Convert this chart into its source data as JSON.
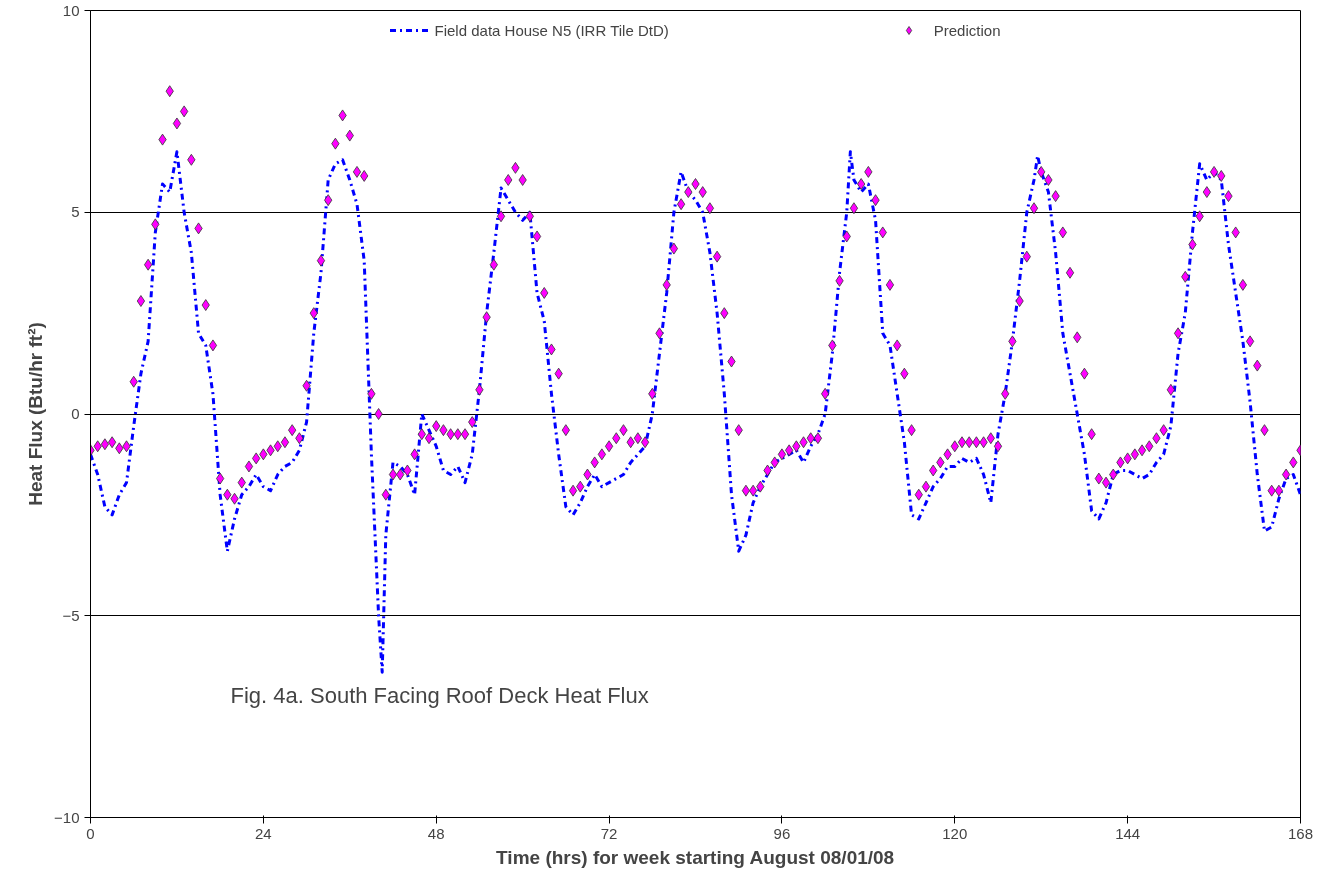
{
  "chart_data": {
    "type": "line",
    "xlabel": "Time (hrs) for week starting August 08/01/08",
    "ylabel": "Heat Flux (Btu/hr ft²)",
    "annotations": [
      "Fig. 4a. South Facing Roof Deck Heat Flux"
    ],
    "xlim": [
      0,
      168
    ],
    "xticks": [
      0,
      24,
      48,
      72,
      96,
      120,
      144,
      168
    ],
    "ylim": [
      -10,
      10
    ],
    "yticks": [
      -10,
      -5,
      0,
      5,
      10
    ],
    "grid": "y",
    "legend": "top",
    "series": [
      {
        "name": "Field data House N5 (IRR Tile DtD)",
        "color": "#0000ff",
        "line_style": "dashdot",
        "x": [
          0,
          1,
          2,
          3,
          4,
          5,
          6,
          7,
          8,
          9,
          10,
          11,
          12,
          13,
          14,
          15,
          16,
          17,
          18,
          19,
          20,
          21,
          22,
          23,
          24,
          25,
          26,
          27,
          28,
          29,
          30,
          31,
          32,
          33,
          34,
          35,
          36,
          37,
          38,
          39,
          40,
          40.5,
          41,
          42,
          43,
          44,
          45,
          46,
          47,
          48,
          49,
          50,
          51,
          52,
          53,
          54,
          55,
          56,
          57,
          58,
          59,
          60,
          61,
          62,
          63,
          64,
          65,
          66,
          67,
          68,
          69,
          70,
          71,
          72,
          73,
          74,
          75,
          76,
          77,
          78,
          79,
          80,
          81,
          82,
          83,
          84,
          85,
          86,
          87,
          88,
          89,
          90,
          91,
          92,
          93,
          94,
          95,
          96,
          97,
          98,
          99,
          100,
          101,
          102,
          103,
          104,
          105,
          105.5,
          106,
          107,
          108,
          109,
          110,
          111,
          112,
          113,
          114,
          115,
          116,
          117,
          118,
          119,
          120,
          121,
          122,
          123,
          124,
          125,
          126,
          127,
          128,
          129,
          130,
          131,
          131.5,
          132,
          133,
          134,
          135,
          136,
          137,
          138,
          139,
          140,
          141,
          142,
          143,
          144,
          145,
          146,
          147,
          148,
          149,
          150,
          151,
          152,
          153,
          154,
          155,
          156,
          157,
          158,
          159,
          160,
          161,
          162,
          163,
          164,
          165,
          166,
          167,
          168
        ],
        "values": [
          -1.0,
          -1.5,
          -2.3,
          -2.5,
          -2.0,
          -1.7,
          -0.3,
          1.0,
          1.8,
          4.5,
          5.7,
          5.5,
          6.5,
          5.0,
          4.0,
          2.0,
          1.7,
          0.5,
          -2.0,
          -3.4,
          -2.6,
          -2.0,
          -1.8,
          -1.5,
          -1.8,
          -1.9,
          -1.5,
          -1.3,
          -1.2,
          -0.9,
          -0.2,
          2.0,
          3.5,
          5.8,
          6.2,
          6.3,
          5.8,
          5.2,
          3.8,
          -1.0,
          -5.0,
          -6.4,
          -3.0,
          -1.2,
          -1.3,
          -1.5,
          -2.0,
          0.0,
          -0.4,
          -0.8,
          -1.4,
          -1.5,
          -1.3,
          -1.7,
          -1.0,
          0.6,
          2.5,
          4.0,
          5.6,
          5.3,
          5.0,
          4.8,
          5.0,
          3.0,
          2.3,
          0.5,
          -1.0,
          -2.3,
          -2.5,
          -2.2,
          -1.8,
          -1.5,
          -1.8,
          -1.7,
          -1.6,
          -1.5,
          -1.2,
          -1.0,
          -0.8,
          0.0,
          1.5,
          3.0,
          5.0,
          6.0,
          5.5,
          5.3,
          5.0,
          4.0,
          2.5,
          0.5,
          -2.0,
          -3.4,
          -3.0,
          -2.2,
          -1.8,
          -1.5,
          -1.2,
          -1.1,
          -1.0,
          -0.9,
          -1.2,
          -0.8,
          -0.5,
          0.0,
          1.5,
          3.5,
          5.0,
          6.5,
          5.8,
          5.5,
          5.7,
          4.8,
          2.0,
          1.7,
          0.5,
          -0.7,
          -2.5,
          -2.6,
          -2.2,
          -1.8,
          -1.6,
          -1.3,
          -1.3,
          -1.1,
          -1.2,
          -1.1,
          -1.5,
          -2.2,
          -0.5,
          0.5,
          1.8,
          3.3,
          5.0,
          5.8,
          6.4,
          6.0,
          5.5,
          4.0,
          2.0,
          1.0,
          0.0,
          -1.0,
          -2.4,
          -2.6,
          -2.2,
          -1.5,
          -1.4,
          -1.4,
          -1.5,
          -1.6,
          -1.5,
          -1.2,
          -1.0,
          -0.3,
          1.5,
          2.5,
          4.5,
          6.2,
          5.8,
          6.0,
          5.8,
          4.2,
          3.0,
          1.8,
          0.3,
          -1.5,
          -2.9,
          -2.8,
          -2.1,
          -1.6,
          -1.5,
          -2.0
        ]
      },
      {
        "name": "Prediction",
        "type": "scatter",
        "marker": "diamond",
        "color": "#ff00ff",
        "x": [
          0,
          1,
          2,
          3,
          4,
          5,
          6,
          7,
          8,
          9,
          10,
          11,
          12,
          13,
          14,
          15,
          16,
          17,
          18,
          19,
          20,
          21,
          22,
          23,
          24,
          25,
          26,
          27,
          28,
          29,
          30,
          31,
          32,
          33,
          34,
          35,
          36,
          37,
          38,
          39,
          40,
          41,
          42,
          43,
          44,
          45,
          46,
          47,
          48,
          49,
          50,
          51,
          52,
          53,
          54,
          55,
          56,
          57,
          58,
          59,
          60,
          61,
          62,
          63,
          64,
          65,
          66,
          67,
          68,
          69,
          70,
          71,
          72,
          73,
          74,
          75,
          76,
          77,
          78,
          79,
          80,
          81,
          82,
          83,
          84,
          85,
          86,
          87,
          88,
          89,
          90,
          91,
          92,
          93,
          94,
          95,
          96,
          97,
          98,
          99,
          100,
          101,
          102,
          103,
          104,
          105,
          106,
          107,
          108,
          109,
          110,
          111,
          112,
          113,
          114,
          115,
          116,
          117,
          118,
          119,
          120,
          121,
          122,
          123,
          124,
          125,
          126,
          127,
          128,
          129,
          130,
          131,
          132,
          133,
          134,
          135,
          136,
          137,
          138,
          139,
          140,
          141,
          142,
          143,
          144,
          145,
          146,
          147,
          148,
          149,
          150,
          151,
          152,
          153,
          154,
          155,
          156,
          157,
          158,
          159,
          160,
          161,
          162,
          163,
          164,
          165,
          166,
          167,
          168
        ],
        "values": [
          -0.9,
          -0.8,
          -0.75,
          -0.7,
          -0.85,
          -0.8,
          0.8,
          2.8,
          3.7,
          4.7,
          6.8,
          8.0,
          7.2,
          7.5,
          6.3,
          4.6,
          2.7,
          1.7,
          -1.6,
          -2.0,
          -2.1,
          -1.7,
          -1.3,
          -1.1,
          -1.0,
          -0.9,
          -0.8,
          -0.7,
          -0.4,
          -0.6,
          0.7,
          2.5,
          3.8,
          5.3,
          6.7,
          7.4,
          6.9,
          6.0,
          5.9,
          0.5,
          0.0,
          -2.0,
          -1.5,
          -1.5,
          -1.4,
          -1.0,
          -0.5,
          -0.6,
          -0.3,
          -0.4,
          -0.5,
          -0.5,
          -0.5,
          -0.2,
          0.6,
          2.4,
          3.7,
          4.9,
          5.8,
          6.1,
          5.8,
          4.9,
          4.4,
          3.0,
          1.6,
          1.0,
          -0.4,
          -1.9,
          -1.8,
          -1.5,
          -1.2,
          -1.0,
          -0.8,
          -0.6,
          -0.4,
          -0.7,
          -0.6,
          -0.7,
          0.5,
          2.0,
          3.2,
          4.1,
          5.2,
          5.5,
          5.7,
          5.5,
          5.1,
          3.9,
          2.5,
          1.3,
          -0.4,
          -1.9,
          -1.9,
          -1.8,
          -1.4,
          -1.2,
          -1.0,
          -0.9,
          -0.8,
          -0.7,
          -0.6,
          -0.6,
          0.5,
          1.7,
          3.3,
          4.4,
          5.1,
          5.7,
          6.0,
          5.3,
          4.5,
          3.2,
          1.7,
          1.0,
          -0.4,
          -2.0,
          -1.8,
          -1.4,
          -1.2,
          -1.0,
          -0.8,
          -0.7,
          -0.7,
          -0.7,
          -0.7,
          -0.6,
          -0.8,
          0.5,
          1.8,
          2.8,
          3.9,
          5.1,
          6.0,
          5.8,
          5.4,
          4.5,
          3.5,
          1.9,
          1.0,
          -0.5,
          -1.6,
          -1.7,
          -1.5,
          -1.2,
          -1.1,
          -1.0,
          -0.9,
          -0.8,
          -0.6,
          -0.4,
          0.6,
          2.0,
          3.4,
          4.2,
          4.9,
          5.5,
          6.0,
          5.9,
          5.4,
          4.5,
          3.2,
          1.8,
          1.2,
          -0.4,
          -1.9,
          -1.9,
          -1.5,
          -1.2,
          -0.9
        ]
      }
    ]
  }
}
